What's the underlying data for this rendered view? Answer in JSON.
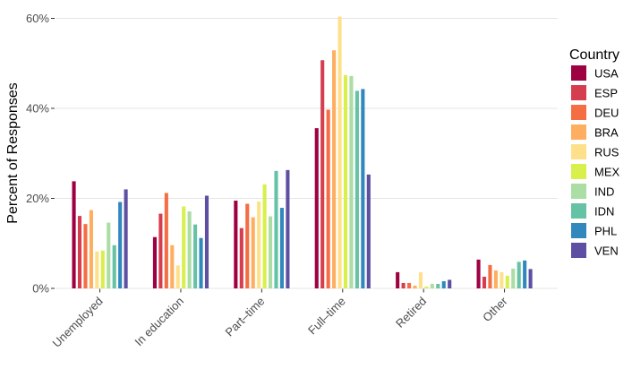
{
  "chart_data": {
    "type": "bar",
    "ylabel": "Percent of Responses",
    "xlabel": "",
    "ylim": [
      0,
      60
    ],
    "y_ticks": [
      0,
      20,
      40,
      60
    ],
    "y_tick_labels": [
      "0%",
      "20%",
      "40%",
      "60%"
    ],
    "grid": true,
    "legend_position": "right",
    "legend_title": "Country",
    "categories": [
      "Unemployed",
      "In education",
      "Part–time",
      "Full–time",
      "Retired",
      "Other"
    ],
    "series": [
      {
        "name": "USA",
        "color": "#9e0142",
        "values": [
          23.8,
          11.4,
          19.5,
          35.6,
          3.6,
          6.4
        ]
      },
      {
        "name": "ESP",
        "color": "#d53e4f",
        "values": [
          16.1,
          16.6,
          13.4,
          50.7,
          1.2,
          2.6
        ]
      },
      {
        "name": "DEU",
        "color": "#f46d43",
        "values": [
          14.3,
          21.2,
          18.8,
          39.7,
          1.2,
          5.2
        ]
      },
      {
        "name": "BRA",
        "color": "#fdae61",
        "values": [
          17.4,
          9.6,
          15.8,
          52.9,
          0.6,
          4.0
        ]
      },
      {
        "name": "RUS",
        "color": "#fee08b",
        "values": [
          8.2,
          5.1,
          19.3,
          60.4,
          3.6,
          3.6
        ]
      },
      {
        "name": "MEX",
        "color": "#d9ef4b",
        "values": [
          8.4,
          18.2,
          23.1,
          47.4,
          0.4,
          2.8
        ]
      },
      {
        "name": "IND",
        "color": "#abdda4",
        "values": [
          14.6,
          17.1,
          16.0,
          47.2,
          1.0,
          4.4
        ]
      },
      {
        "name": "IDN",
        "color": "#66c2a5",
        "values": [
          9.6,
          14.2,
          26.1,
          43.9,
          1.0,
          5.9
        ]
      },
      {
        "name": "PHL",
        "color": "#3288bd",
        "values": [
          19.2,
          11.2,
          17.9,
          44.3,
          1.6,
          6.2
        ]
      },
      {
        "name": "VEN",
        "color": "#5e4fa2",
        "values": [
          22.0,
          20.6,
          26.3,
          25.3,
          1.9,
          4.3
        ]
      }
    ]
  }
}
